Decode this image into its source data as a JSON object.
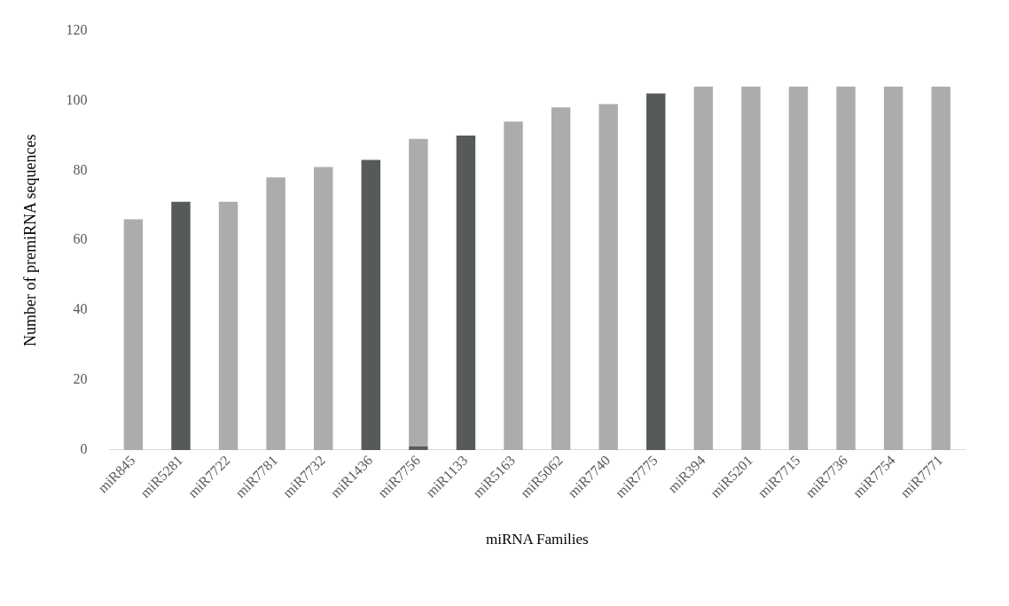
{
  "chart_data": {
    "type": "bar",
    "stacked": true,
    "xlabel": "miRNA Families",
    "ylabel": "Number of premiRNA sequences",
    "categories": [
      "miR845",
      "miR5281",
      "miR7722",
      "miR7781",
      "miR7732",
      "miR1436",
      "miR7756",
      "miR1133",
      "miR5163",
      "miR5062",
      "miR7740",
      "miR7775",
      "miR394",
      "miR5201",
      "miR7715",
      "miR7736",
      "miR7754",
      "miR7771"
    ],
    "series": [
      {
        "color": "#575a5b",
        "values": [
          null,
          71,
          null,
          null,
          null,
          83,
          1,
          90,
          null,
          null,
          null,
          102,
          null,
          null,
          null,
          null,
          null,
          null
        ]
      },
      {
        "color": "#acacae",
        "values": [
          66,
          null,
          71,
          78,
          81,
          null,
          88,
          null,
          94,
          98,
          99,
          null,
          104,
          104,
          104,
          104,
          104,
          104
        ]
      }
    ],
    "ylim": [
      0,
      120
    ],
    "yticks": [
      0,
      20,
      40,
      60,
      80,
      100,
      120
    ],
    "grid": false,
    "legend": false
  }
}
